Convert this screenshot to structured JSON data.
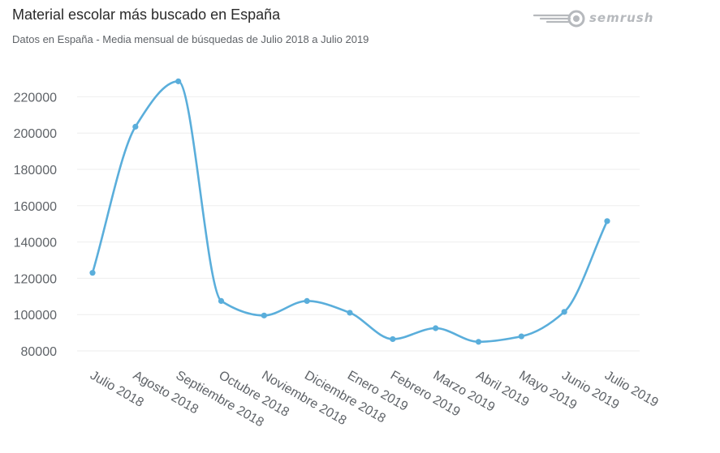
{
  "header": {
    "title": "Material escolar más buscado en España",
    "subtitle": "Datos en España - Media mensual de búsquedas de Julio 2018 a Julio 2019",
    "brand": "semrush",
    "brand_icon": "semrush-fireball-icon"
  },
  "colors": {
    "line": "#5aaedb",
    "grid": "#eeeeee",
    "tick_text": "#5f6368",
    "brand": "#b6b9bd"
  },
  "chart_data": {
    "type": "line",
    "title": "Material escolar más buscado en España",
    "subtitle": "Datos en España - Media mensual de búsquedas de Julio 2018 a Julio 2019",
    "xlabel": "",
    "ylabel": "",
    "categories": [
      "Julio 2018",
      "Agosto 2018",
      "Septiembre 2018",
      "Octubre 2018",
      "Noviembre 2018",
      "Diciembre 2018",
      "Enero 2019",
      "Febrero 2019",
      "Marzo 2019",
      "Abril 2019",
      "Mayo 2019",
      "Junio 2019",
      "Julio 2019"
    ],
    "series": [
      {
        "values": [
          123000,
          203500,
          228500,
          107500,
          99500,
          107500,
          101000,
          86500,
          92500,
          85000,
          88000,
          101500,
          151500
        ]
      }
    ],
    "ylim": [
      80000,
      230000
    ],
    "yticks": [
      80000,
      100000,
      120000,
      140000,
      160000,
      180000,
      200000,
      220000
    ],
    "grid": true,
    "legend": "none"
  }
}
